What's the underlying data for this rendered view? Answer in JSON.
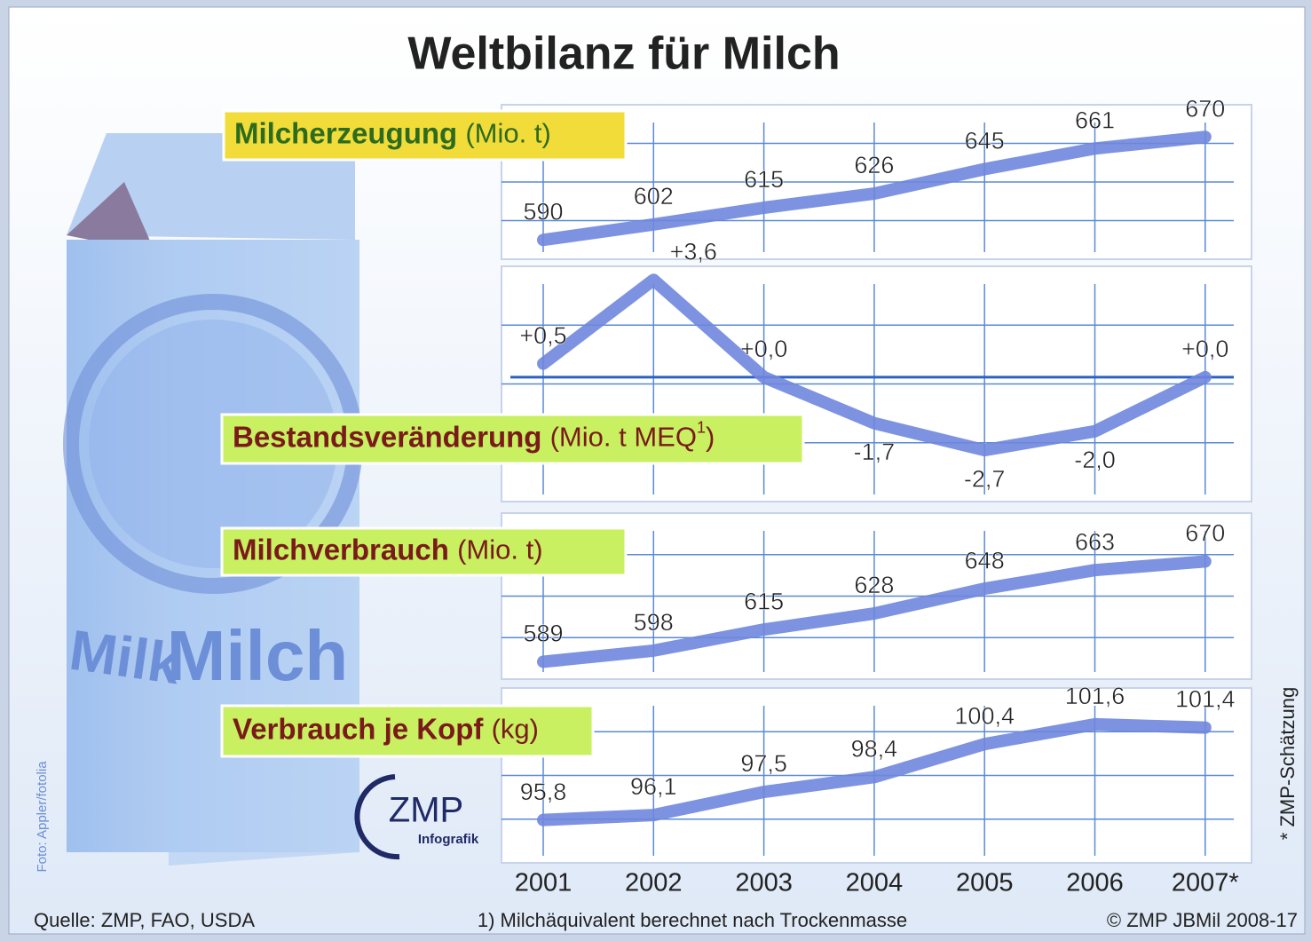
{
  "title": "Weltbilanz für Milch",
  "image": {
    "carton_text_1": "Milk",
    "carton_text_2": "Milch",
    "photo_credit": "Foto: Appler/fotolia",
    "logo": "ZMP",
    "logo_sub": "Infografik"
  },
  "note": "* ZMP-Schätzung",
  "footer": {
    "source": "Quelle: ZMP, FAO, USDA",
    "footnote": "1) Milchäquivalent berechnet nach Trockenmasse",
    "copyright": "© ZMP JBMil 2008-17"
  },
  "chart_data": [
    {
      "type": "line",
      "title": "Milcherzeugung",
      "unit": "(Mio. t)",
      "values": [
        590,
        602,
        615,
        626,
        645,
        661,
        670
      ],
      "color": "#6f86dd",
      "ylim": [
        575,
        695
      ]
    },
    {
      "type": "line",
      "title": "Bestandsveränderung",
      "unit": "(Mio. t MEQ",
      "unit_sup": "1",
      "unit_end": ")",
      "values": [
        0.5,
        3.6,
        0.0,
        -1.7,
        -2.7,
        -2.0,
        0.0
      ],
      "value_labels": [
        "+0,5",
        "+3,6",
        "+0,0",
        "-1,7",
        "-2,7",
        "-2,0",
        "+0,0"
      ],
      "color": "#6f86dd",
      "ylim": [
        -4.6,
        4.1
      ]
    },
    {
      "type": "line",
      "title": "Milchverbrauch",
      "unit": "(Mio. t)",
      "values": [
        589,
        598,
        615,
        628,
        648,
        663,
        670
      ],
      "color": "#6f86dd",
      "ylim": [
        575,
        709
      ]
    },
    {
      "type": "line",
      "title": "Verbrauch je Kopf",
      "unit": "(kg)",
      "categories": [
        "2001",
        "2002",
        "2003",
        "2004",
        "2005",
        "2006",
        "2007*"
      ],
      "values": [
        95.8,
        96.1,
        97.5,
        98.4,
        100.4,
        101.6,
        101.4
      ],
      "value_labels": [
        "95,8",
        "96,1",
        "97,5",
        "98,4",
        "100,4",
        "101,6",
        "101,4"
      ],
      "color": "#6f86dd",
      "ylim": [
        93.2,
        103.8
      ]
    }
  ]
}
